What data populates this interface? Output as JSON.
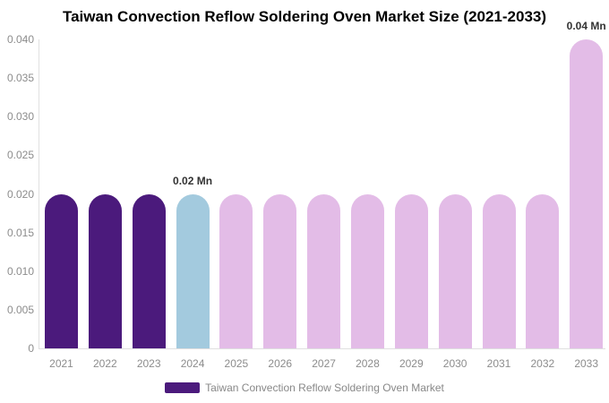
{
  "chart": {
    "title": "Taiwan Convection Reflow Soldering Oven Market Size (2021-2033)"
  },
  "chart_data": {
    "type": "bar",
    "title": "Taiwan Convection Reflow Soldering Oven Market Size (2021-2033)",
    "categories": [
      "2021",
      "2022",
      "2023",
      "2024",
      "2025",
      "2026",
      "2027",
      "2028",
      "2029",
      "2030",
      "2031",
      "2032",
      "2033"
    ],
    "values": [
      0.02,
      0.02,
      0.02,
      0.02,
      0.02,
      0.02,
      0.02,
      0.02,
      0.02,
      0.02,
      0.02,
      0.02,
      0.04
    ],
    "unit": "Mn",
    "y_ticks": [
      "0.040",
      "0.035",
      "0.030",
      "0.025",
      "0.020",
      "0.015",
      "0.010",
      "0.005",
      "0"
    ],
    "ylim": [
      0,
      0.04
    ],
    "grid": false,
    "legend_position": "bottom",
    "annotations": [
      {
        "category": "2024",
        "text": "0.02 Mn"
      },
      {
        "category": "2033",
        "text": "0.04 Mn"
      }
    ],
    "bar_colors": [
      "#4b1a7c",
      "#4b1a7c",
      "#4b1a7c",
      "#a3cade",
      "#e3bce7",
      "#e3bce7",
      "#e3bce7",
      "#e3bce7",
      "#e3bce7",
      "#e3bce7",
      "#e3bce7",
      "#e3bce7",
      "#e3bce7"
    ],
    "legend": [
      {
        "label": "Taiwan Convection Reflow Soldering Oven Market",
        "color": "#4b1a7c"
      }
    ],
    "colors": {
      "historical": "#4b1a7c",
      "base_year": "#a3cade",
      "forecast": "#e3bce7",
      "axis_line": "#e0e0e0",
      "axis_text": "#8c8c8c",
      "value_label_text": "#333333",
      "legend_text": "#888888"
    }
  }
}
